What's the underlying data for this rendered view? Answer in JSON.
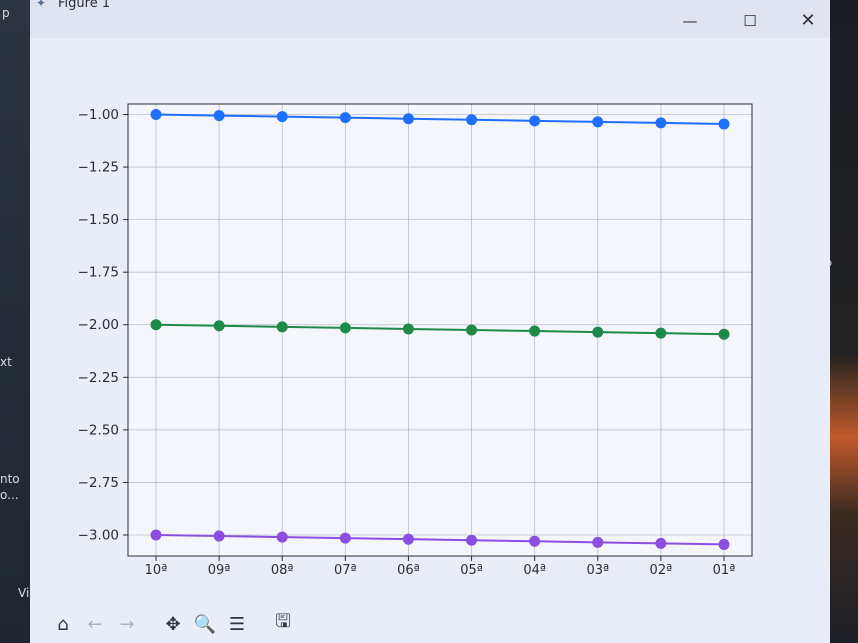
{
  "window": {
    "title": "Figure 1",
    "controls": {
      "minimize": "—",
      "maximize": "☐",
      "close": "✕"
    }
  },
  "background_text": {
    "left": [
      "p",
      "xt",
      "nto",
      "o...",
      "Vi"
    ],
    "right": [
      "o"
    ]
  },
  "toolbar": {
    "items": [
      {
        "name": "home-button",
        "icon": "home-icon",
        "glyph": "⌂",
        "enabled": true
      },
      {
        "name": "back-button",
        "icon": "arrow-left-icon",
        "glyph": "←",
        "enabled": false
      },
      {
        "name": "forward-button",
        "icon": "arrow-right-icon",
        "glyph": "→",
        "enabled": false
      },
      {
        "name": "pan-button",
        "icon": "move-icon",
        "glyph": "✥",
        "enabled": true
      },
      {
        "name": "zoom-button",
        "icon": "zoom-icon",
        "glyph": "🔍",
        "enabled": true
      },
      {
        "name": "configure-button",
        "icon": "sliders-icon",
        "glyph": "☰",
        "enabled": true
      },
      {
        "name": "save-button",
        "icon": "save-icon",
        "glyph": "🖫",
        "enabled": true
      }
    ]
  },
  "chart_data": {
    "type": "line",
    "categories": [
      "10ª",
      "09ª",
      "08ª",
      "07ª",
      "06ª",
      "05ª",
      "04ª",
      "03ª",
      "02ª",
      "01ª"
    ],
    "yticks": [
      -1.0,
      -1.25,
      -1.5,
      -1.75,
      -2.0,
      -2.25,
      -2.5,
      -2.75,
      -3.0
    ],
    "ytick_labels": [
      "−1.00",
      "−1.25",
      "−1.50",
      "−1.75",
      "−2.00",
      "−2.25",
      "−2.50",
      "−2.75",
      "−3.00"
    ],
    "ylim": [
      -3.1,
      -0.95
    ],
    "grid": true,
    "title": "",
    "xlabel": "",
    "ylabel": "",
    "series": [
      {
        "color": "#1f6fff",
        "values": [
          -1.0,
          -1.005,
          -1.01,
          -1.015,
          -1.02,
          -1.025,
          -1.03,
          -1.035,
          -1.04,
          -1.045
        ]
      },
      {
        "color": "#1e8a4a",
        "values": [
          -2.0,
          -2.005,
          -2.01,
          -2.015,
          -2.02,
          -2.025,
          -2.03,
          -2.035,
          -2.04,
          -2.045
        ]
      },
      {
        "color": "#8a4fe0",
        "values": [
          -3.0,
          -3.005,
          -3.01,
          -3.015,
          -3.02,
          -3.025,
          -3.03,
          -3.035,
          -3.04,
          -3.045
        ]
      }
    ]
  }
}
